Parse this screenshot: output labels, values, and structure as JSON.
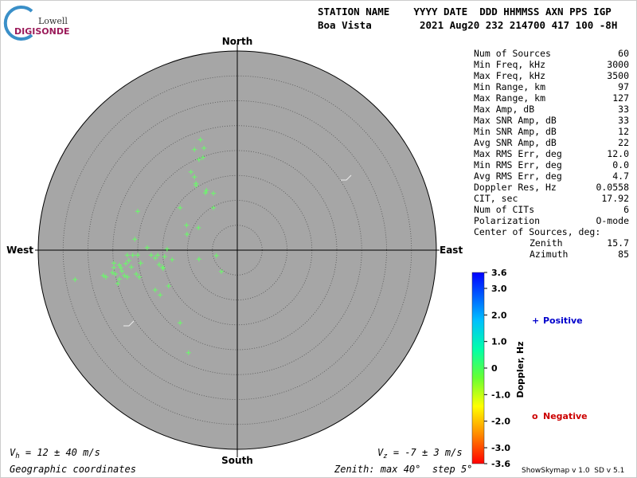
{
  "header": {
    "logo_top": "Lowell",
    "logo_bottom": "DIGISONDE",
    "label_row": "STATION NAME    YYYY DATE  DDD HHMMSS AXN PPS IGP",
    "station": "Boa Vista",
    "value_row": "2021 Aug20 232 214700 417 100 -8H"
  },
  "chart_data": {
    "type": "skymap",
    "directions": {
      "north": "North",
      "south": "South",
      "east": "East",
      "west": "West"
    },
    "xlim": [
      -40,
      40
    ],
    "ylim": [
      -40,
      40
    ],
    "rings": [
      5,
      10,
      15,
      20,
      25,
      30,
      35
    ],
    "grid": true,
    "color": "#66ff66",
    "x": [
      -7.4,
      -8.6,
      -6.7,
      -7.7,
      -6.9,
      -9.3,
      -8.6,
      -8.3,
      -8.3,
      -6.2,
      -6.4,
      -4.8,
      -11.5,
      -4.8,
      -20.0,
      -7.8,
      -10.2,
      -10.1,
      -20.6,
      -18.1,
      -14.1,
      -16.0,
      -16.5,
      -17.3,
      -20.0,
      -21.0,
      -21.8,
      -22.4,
      -13.1,
      -7.7,
      -4.2,
      -15.0,
      -15.7,
      -19.4,
      -23.7,
      -24.8,
      -25.1,
      -24.5,
      -23.2,
      -22.7,
      -26.9,
      -26.4,
      -23.7,
      -22.1,
      -19.7,
      -32.6,
      -24.0,
      -13.8,
      -16.5,
      -15.5,
      -3.2,
      -11.5,
      -9.8,
      -24.8,
      -21.3,
      -14.9,
      -20.3,
      -22.1,
      -23.4,
      -14.6
    ],
    "y": [
      22.2,
      20.2,
      20.5,
      18.2,
      18.6,
      15.7,
      14.7,
      13.4,
      13.0,
      12.0,
      11.5,
      11.4,
      8.5,
      8.5,
      7.8,
      4.5,
      5.0,
      3.2,
      2.2,
      0.5,
      0.2,
      -1.0,
      -1.6,
      -1.0,
      -1.0,
      -1.0,
      -2.1,
      -2.7,
      -1.9,
      -1.8,
      -1.1,
      -3.4,
      -2.9,
      -2.6,
      -3.0,
      -2.6,
      -4.5,
      -4.8,
      -4.2,
      -5.1,
      -5.1,
      -5.4,
      -5.8,
      -5.4,
      -5.4,
      -5.9,
      -6.7,
      -7.2,
      -8.0,
      -9.0,
      -4.3,
      -14.6,
      -20.6,
      -3.5,
      -3.4,
      -3.7,
      -4.8,
      -1.0,
      -3.5,
      -1.3
    ]
  },
  "stats": [
    [
      "Num of Sources",
      "60"
    ],
    [
      "Min Freq, kHz",
      "3000"
    ],
    [
      "Max Freq, kHz",
      "3500"
    ],
    [
      "Min Range, km",
      "97"
    ],
    [
      "Max Range, km",
      "127"
    ],
    [
      "Max Amp, dB",
      "33"
    ],
    [
      "Max SNR Amp, dB",
      "33"
    ],
    [
      "Min SNR Amp, dB",
      "12"
    ],
    [
      "Avg SNR Amp, dB",
      "22"
    ],
    [
      "Max RMS Err, deg",
      "12.0"
    ],
    [
      "Min RMS Err, deg",
      "0.0"
    ],
    [
      "Avg RMS Err, deg",
      "4.7"
    ],
    [
      "Doppler Res, Hz",
      "0.0558"
    ],
    [
      "CIT, sec",
      "17.92"
    ],
    [
      "Num of CITs",
      "6"
    ],
    [
      "Polarization",
      "O-mode"
    ]
  ],
  "center": {
    "title": "Center of Sources, deg:",
    "zenith_label": "Zenith",
    "zenith": "15.7",
    "azimuth_label": "Azimuth",
    "azimuth": "85"
  },
  "colorbar": {
    "title": "Doppler, Hz",
    "lim": [
      -3.6,
      3.6
    ],
    "ticks": [
      3.6,
      {
        "value": 3.0,
        "label": "3.0"
      },
      {
        "value": 2.0,
        "label": "2.0"
      },
      {
        "value": 1.0,
        "label": "1.0"
      },
      0,
      {
        "value": -1.0,
        "label": "-1.0"
      },
      {
        "value": -2.0,
        "label": "-2.0"
      },
      {
        "value": -3.0,
        "label": "-3.0"
      },
      -3.6
    ]
  },
  "legend": {
    "positive_symbol": "+",
    "positive": "Positive",
    "negative_symbol": "o",
    "negative": "Negative"
  },
  "footer": {
    "vh": "V",
    "vh_sub": "h",
    "vh_text": " = 12 ± 40 m/s",
    "vz": "V",
    "vz_sub": "z",
    "vz_text": " = -7 ± 3 m/s",
    "coords": "Geographic coordinates",
    "zenith": "Zenith: max 40°  step 5°",
    "version": "ShowSkymap v 1.0  SD v 5.1"
  }
}
